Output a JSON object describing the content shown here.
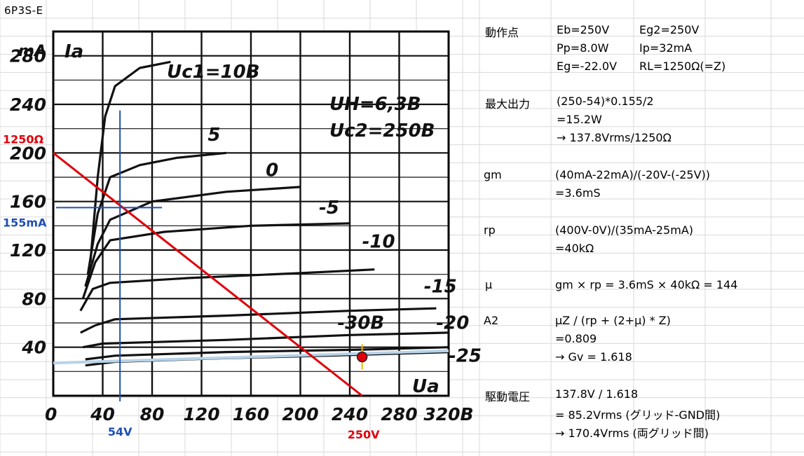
{
  "sheet": {
    "title": "6P3S-E"
  },
  "chart_data": {
    "type": "line",
    "title": "",
    "xlabel": "Ua",
    "ylabel": "Ia",
    "y_unit": "mA",
    "x_unit_suffix": "B",
    "xlim": [
      0,
      320
    ],
    "ylim": [
      0,
      300
    ],
    "x_ticks": [
      "0",
      "40",
      "80",
      "120",
      "160",
      "200",
      "240",
      "280",
      "320B"
    ],
    "x_tick_values": [
      0,
      40,
      80,
      120,
      160,
      200,
      240,
      280,
      320
    ],
    "y_ticks": [
      "40",
      "80",
      "120",
      "160",
      "200",
      "240",
      "280"
    ],
    "y_tick_values": [
      40,
      80,
      120,
      160,
      200,
      240,
      280
    ],
    "conditions": [
      "UH=6,3B",
      "Uc2=250B"
    ],
    "series": [
      {
        "name": "Uc1=10B",
        "label_pos": [
          92,
          262
        ],
        "points": [
          [
            30,
            110
          ],
          [
            36,
            180
          ],
          [
            42,
            230
          ],
          [
            50,
            255
          ],
          [
            70,
            270
          ],
          [
            95,
            275
          ]
        ]
      },
      {
        "name": "5",
        "label_pos": [
          125,
          210
        ],
        "points": [
          [
            28,
            100
          ],
          [
            36,
            150
          ],
          [
            46,
            180
          ],
          [
            70,
            190
          ],
          [
            100,
            196
          ],
          [
            140,
            200
          ]
        ]
      },
      {
        "name": "0",
        "label_pos": [
          172,
          181
        ],
        "points": [
          [
            26,
            90
          ],
          [
            36,
            125
          ],
          [
            46,
            145
          ],
          [
            80,
            160
          ],
          [
            140,
            168
          ],
          [
            200,
            172
          ]
        ]
      },
      {
        "name": "-5",
        "label_pos": [
          215,
          150
        ],
        "points": [
          [
            24,
            80
          ],
          [
            34,
            110
          ],
          [
            46,
            128
          ],
          [
            90,
            135
          ],
          [
            160,
            140
          ],
          [
            240,
            142
          ]
        ]
      },
      {
        "name": "-10",
        "label_pos": [
          250,
          122
        ],
        "points": [
          [
            22,
            70
          ],
          [
            32,
            88
          ],
          [
            46,
            93
          ],
          [
            110,
            97
          ],
          [
            200,
            101
          ],
          [
            260,
            104
          ]
        ]
      },
      {
        "name": "-15",
        "label_pos": [
          300,
          85
        ],
        "points": [
          [
            22,
            52
          ],
          [
            34,
            58
          ],
          [
            50,
            63
          ],
          [
            140,
            66
          ],
          [
            240,
            70
          ],
          [
            310,
            72
          ]
        ]
      },
      {
        "name": "-20",
        "label_pos": [
          310,
          55
        ],
        "points": [
          [
            24,
            40
          ],
          [
            40,
            43
          ],
          [
            140,
            46
          ],
          [
            240,
            50
          ],
          [
            320,
            52
          ]
        ]
      },
      {
        "name": "-30B",
        "label_pos": [
          230,
          55
        ],
        "points": [
          [
            26,
            25
          ],
          [
            50,
            28
          ],
          [
            140,
            31
          ],
          [
            220,
            33
          ],
          [
            320,
            36
          ]
        ]
      },
      {
        "name": "-25",
        "label_pos": [
          320,
          28
        ],
        "points": [
          [
            26,
            30
          ],
          [
            50,
            33
          ],
          [
            140,
            36
          ],
          [
            250,
            38
          ],
          [
            320,
            40
          ]
        ]
      }
    ],
    "annotations": {
      "load_line": {
        "label": "1250Ω",
        "color": "#e0000a",
        "from": [
          0,
          200
        ],
        "to": [
          250,
          0
        ]
      },
      "vertical_marker": {
        "label": "54V",
        "color": "#1f4fb4",
        "x": 54
      },
      "horizontal_marker": {
        "label": "155mA",
        "color": "#1f4fb4",
        "y": 155
      },
      "load_axis_label": {
        "label": "250V",
        "color": "#e0000a"
      },
      "operating_point": {
        "x": 250,
        "y": 32,
        "color": "#e0000a"
      },
      "screen_line_color": "#b8d3e8"
    }
  },
  "panel": {
    "rows": [
      {
        "head": "動作点",
        "cols": [
          [
            "Eb=250V",
            "Eg2=250V"
          ],
          [
            "Pp=8.0W",
            "Ip=32mA"
          ],
          [
            "Eg=-22.0V",
            "RL=1250Ω(=Z)"
          ]
        ]
      },
      {
        "head": "最大出力",
        "lines": [
          "(250-54)*0.155/2",
          "=15.2W",
          "→ 137.8Vrms/1250Ω"
        ]
      },
      {
        "head": "gm",
        "lines": [
          "(40mA-22mA)/(-20V-(-25V))",
          "=3.6mS"
        ]
      },
      {
        "head": "rp",
        "lines": [
          "(400V-0V)/(35mA-25mA)",
          "=40kΩ"
        ]
      },
      {
        "head": "μ",
        "lines": [
          "gm × rp = 3.6mS × 40kΩ = 144"
        ]
      },
      {
        "head": "A2",
        "lines": [
          "μZ / (rp + (2+μ) * Z)",
          "=0.809",
          "→ Gv = 1.618"
        ]
      },
      {
        "head": "駆動電圧",
        "lines": [
          "137.8V / 1.618",
          "= 85.2Vrms (グリッド-GND間)",
          "→ 170.4Vrms (両グリッド間)"
        ]
      }
    ]
  },
  "colors": {
    "accent_red": "#e0000a",
    "accent_blue": "#1f4fb4",
    "gridline": "#d9d9d9"
  }
}
